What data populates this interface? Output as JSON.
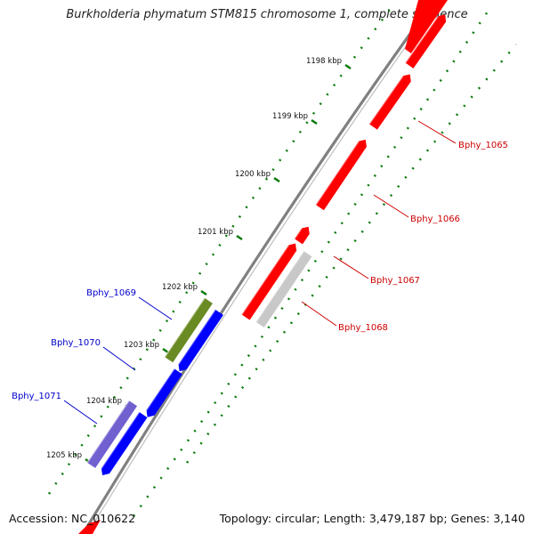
{
  "title": "Burkholderia phymatum STM815 chromosome 1, complete sequence",
  "footer": {
    "accession": "Accession: NC_010622",
    "stats": "Topology: circular; Length: 3,479,187 bp; Genes: 3,140"
  },
  "colors": {
    "forward_gene": "#ff0000",
    "reverse_gene": "#0000ff",
    "pseudo_gene": "#c8c8c8",
    "rna_gene": "#6a8a23",
    "misc_gene": "#7060d0",
    "backbone": "#808080",
    "tick": "#0a7a0a",
    "forward_label": "#cc0000",
    "reverse_label": "#0000cc"
  },
  "kbp_ticks": [
    {
      "label": "1198 kbp"
    },
    {
      "label": "1199 kbp"
    },
    {
      "label": "1200 kbp"
    },
    {
      "label": "1201 kbp"
    },
    {
      "label": "1202 kbp"
    },
    {
      "label": "1203 kbp"
    },
    {
      "label": "1204 kbp"
    },
    {
      "label": "1205 kbp"
    }
  ],
  "genes": [
    {
      "name": "Bphy_1065",
      "strand": "forward",
      "type": "gene"
    },
    {
      "name": "Bphy_1066",
      "strand": "forward",
      "type": "gene"
    },
    {
      "name": "Bphy_1067",
      "strand": "forward",
      "type": "gene"
    },
    {
      "name": "Bphy_1068",
      "strand": "forward",
      "type": "pseudo"
    },
    {
      "name": "Bphy_1069",
      "strand": "reverse",
      "type": "rna"
    },
    {
      "name": "Bphy_1070",
      "strand": "reverse",
      "type": "gene"
    },
    {
      "name": "Bphy_1071",
      "strand": "reverse",
      "type": "misc"
    }
  ]
}
